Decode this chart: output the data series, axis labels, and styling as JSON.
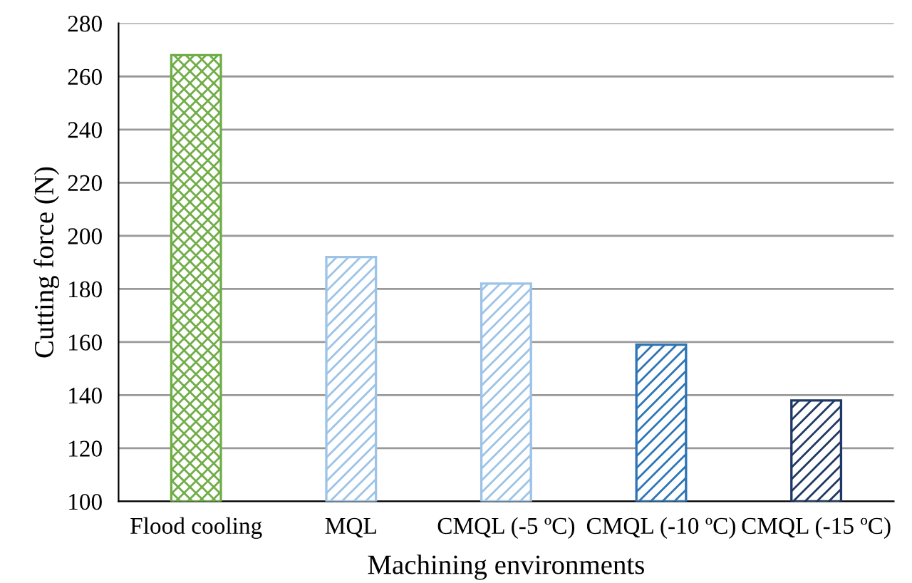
{
  "chart_data": {
    "type": "bar",
    "xlabel": "Machining environments",
    "ylabel": "Cutting force (N)",
    "categories": [
      "Flood cooling",
      "MQL",
      "CMQL (-5 ºC)",
      "CMQL (-10 ºC)",
      "CMQL (-15 ºC)"
    ],
    "values": [
      268,
      192,
      182,
      159,
      138
    ],
    "colors": [
      "#70ad47",
      "#9dc3e6",
      "#9dc3e6",
      "#2e75b6",
      "#1f3864"
    ],
    "ylim": [
      100,
      280
    ],
    "yticks": [
      100,
      120,
      140,
      160,
      180,
      200,
      220,
      240,
      260,
      280
    ],
    "grid": "y"
  }
}
